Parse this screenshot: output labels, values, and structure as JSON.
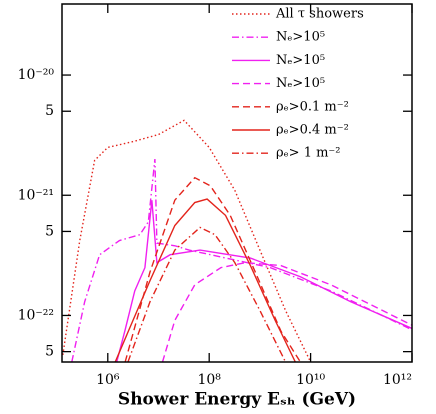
{
  "chart_data": {
    "type": "line",
    "xlabel": "Shower Energy Eₛₕ (GeV)",
    "xscale": "log",
    "yscale": "log",
    "xlim": [
      125000,
      1000000000000.0
    ],
    "ylim": [
      4.1e-23,
      3.9e-20
    ],
    "xticks": [
      {
        "value": 1000000.0,
        "label": "10⁶"
      },
      {
        "value": 100000000.0,
        "label": "10⁸"
      },
      {
        "value": 10000000000.0,
        "label": "10¹⁰"
      },
      {
        "value": 1000000000000.0,
        "label": "10¹²"
      }
    ],
    "yticks": [
      {
        "value": 1e-20,
        "label": "10⁻²⁰"
      },
      {
        "value": 5e-21,
        "label": "5"
      },
      {
        "value": 1e-21,
        "label": "10⁻²¹"
      },
      {
        "value": 5e-22,
        "label": "5"
      },
      {
        "value": 1e-22,
        "label": "10⁻²²"
      },
      {
        "value": 5e-23,
        "label": "5"
      }
    ],
    "legend": "upper right",
    "series": [
      {
        "name": "All τ showers",
        "color": "#e3241c",
        "dash": "dotted",
        "x": [
          130000.0,
          280000.0,
          550000.0,
          1000000.0,
          3200000.0,
          10000000.0,
          32000000.0,
          100000000.0,
          320000000.0,
          1000000000.0,
          3200000000.0,
          10000000000.0
        ],
        "values": [
          4.7e-23,
          4.2e-22,
          1.95e-21,
          2.5e-21,
          2.8e-21,
          3.2e-21,
          4.2e-21,
          2.5e-21,
          1.1e-21,
          3.5e-22,
          1.1e-22,
          4.1e-23
        ]
      },
      {
        "name": "Nₑ>10⁵",
        "color": "#f020f0",
        "dash": "dashdot",
        "x": [
          195000.0,
          350000.0,
          690000.0,
          1700000.0,
          4300000.0,
          6300000.0,
          8500000.0,
          9300000.0,
          21000000.0,
          40000000.0,
          1600000000.0,
          25000000000.0,
          1000000000000.0
        ],
        "values": [
          4.1e-23,
          1.3e-22,
          3.2e-22,
          4.2e-22,
          4.7e-22,
          6e-22,
          2e-21,
          4e-22,
          3.8e-22,
          3.5e-22,
          2.5e-22,
          1.6e-22,
          7.6e-23
        ]
      },
      {
        "name": "Nₑ>10⁵",
        "color": "#f020f0",
        "dash": "solid",
        "x": [
          1500000.0,
          2200000.0,
          3400000.0,
          5400000.0,
          7400000.0,
          9300000.0,
          17000000.0,
          66000000.0,
          650000000.0,
          6300000000.0,
          62000000000.0,
          1000000000000.0
        ],
        "values": [
          4.1e-23,
          7.6e-23,
          1.6e-22,
          2.5e-22,
          9.1e-22,
          2.75e-22,
          3.2e-22,
          3.5e-22,
          3e-22,
          2.1e-22,
          1.3e-22,
          7.8e-23
        ]
      },
      {
        "name": "Nₑ>10⁵",
        "color": "#f020f0",
        "dash": "dashed",
        "x": [
          12000000.0,
          21000000.0,
          52000000.0,
          170000000.0,
          510000000.0,
          2600000000.0,
          25000000000.0,
          1000000000000.0
        ],
        "values": [
          4.1e-23,
          9.1e-23,
          1.8e-22,
          2.5e-22,
          2.75e-22,
          2.6e-22,
          1.8e-22,
          8.3e-23
        ]
      },
      {
        "name": "ρₑ>0.1 m⁻²",
        "color": "#e3241c",
        "dash": "dashed",
        "x": [
          2200000.0,
          6800000.0,
          21000000.0,
          52000000.0,
          105000000.0,
          260000000.0,
          810000000.0,
          2600000000.0,
          6300000000.0
        ],
        "values": [
          4.1e-23,
          2.3e-22,
          9.1e-22,
          1.4e-21,
          1.2e-21,
          6.8e-22,
          2.3e-22,
          7.4e-23,
          4.1e-23
        ]
      },
      {
        "name": "ρₑ>0.4 m⁻²",
        "color": "#e3241c",
        "dash": "solid",
        "x": [
          1400000.0,
          6800000.0,
          21000000.0,
          52000000.0,
          91000000.0,
          210000000.0,
          650000000.0,
          2000000000.0,
          5000000000.0
        ],
        "values": [
          4.1e-23,
          1.95e-22,
          5.6e-22,
          8.7e-22,
          9.3e-22,
          6.8e-22,
          2.6e-22,
          9.1e-23,
          4.1e-23
        ]
      },
      {
        "name": "ρₑ>  1 m⁻²",
        "color": "#e3241c",
        "dash": "dashdot",
        "x": [
          2500000.0,
          6800000.0,
          21000000.0,
          66000000.0,
          130000000.0,
          320000000.0,
          1000000000.0,
          3200000000.0
        ],
        "values": [
          4.1e-23,
          1.3e-22,
          3.5e-22,
          5.4e-22,
          4.7e-22,
          2.75e-22,
          1.1e-22,
          4.1e-23
        ]
      }
    ]
  }
}
